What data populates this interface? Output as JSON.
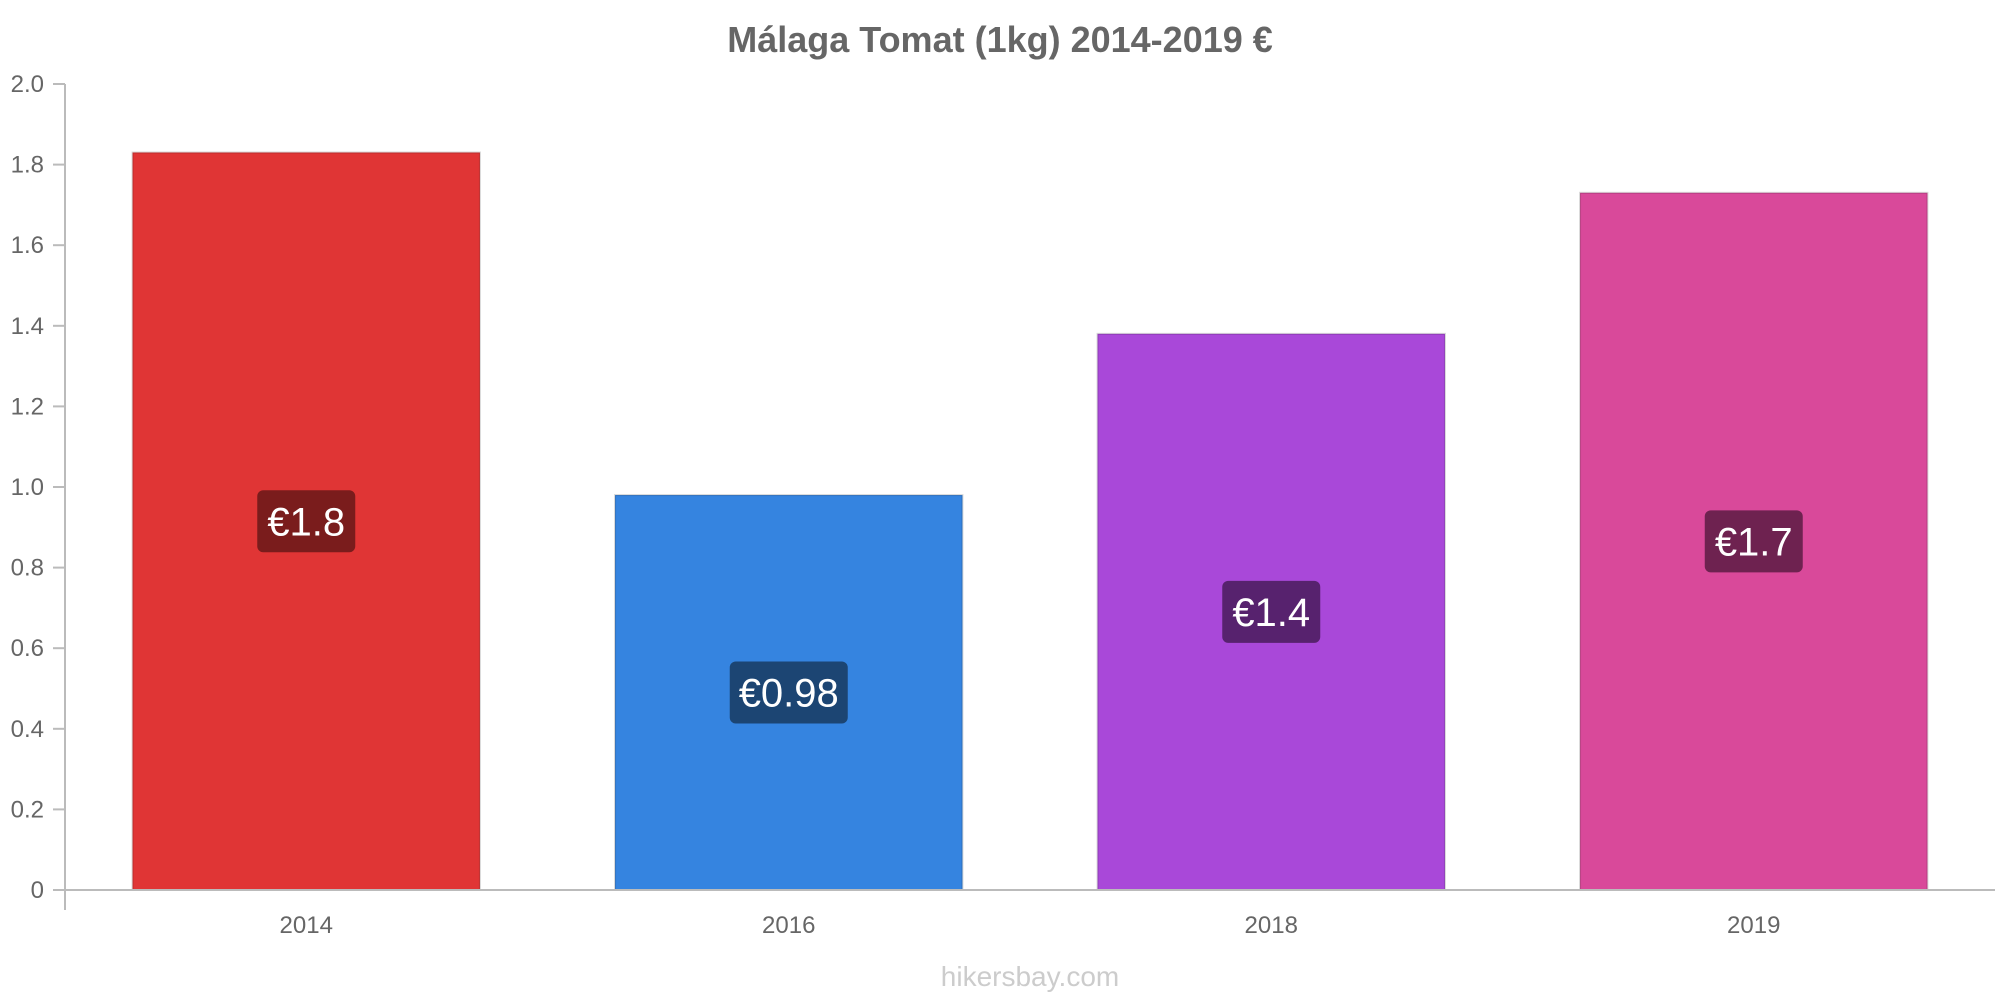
{
  "chart_data": {
    "type": "bar",
    "title": "Málaga Tomat (1kg) 2014-2019 €",
    "categories": [
      "2014",
      "2016",
      "2018",
      "2019"
    ],
    "values": [
      1.83,
      0.98,
      1.38,
      1.73
    ],
    "data_labels": [
      "€1.8",
      "€0.98",
      "€1.4",
      "€1.7"
    ],
    "colors": [
      "#e03535",
      "#3584e0",
      "#a948d9",
      "#d9499a"
    ],
    "label_colors": [
      "#7a1c1c",
      "#1c4573",
      "#57226e",
      "#6e2250"
    ],
    "yticks": [
      "0",
      "0.2",
      "0.4",
      "0.6",
      "0.8",
      "1.0",
      "1.2",
      "1.4",
      "1.6",
      "1.8",
      "2.0"
    ],
    "ylim": [
      0,
      2.0
    ],
    "grid": false,
    "legend": "none"
  },
  "footer": "hikersbay.com"
}
